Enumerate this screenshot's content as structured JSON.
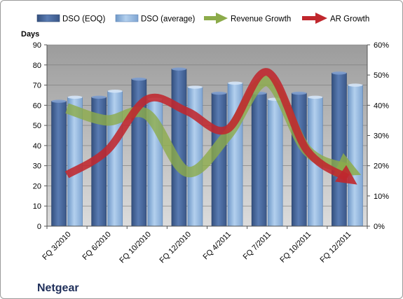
{
  "chart_data": {
    "type": "bar",
    "company": "Netgear",
    "ylabel_left": "Days",
    "ylim_left": [
      0,
      90
    ],
    "yticks_left": [
      "0",
      "10",
      "20",
      "30",
      "40",
      "50",
      "60",
      "70",
      "80",
      "90"
    ],
    "ylim_right": [
      0,
      60
    ],
    "yticks_right": [
      "0%",
      "10%",
      "20%",
      "30%",
      "40%",
      "50%",
      "60%"
    ],
    "categories": [
      "FQ 3/2010",
      "FQ 6/2010",
      "FQ 10/2010",
      "FQ 12/2010",
      "FQ 4/2011",
      "FQ 7/2011",
      "FQ 10/2011",
      "FQ 12/2011"
    ],
    "grid": true,
    "legend_position": "top",
    "series": [
      {
        "name": "DSO (EOQ)",
        "kind": "bar",
        "axis": "left",
        "color": "#4a6a9e",
        "values": [
          62,
          64,
          73,
          78,
          66,
          66,
          66,
          76
        ]
      },
      {
        "name": "DSO (average)",
        "kind": "bar",
        "axis": "left",
        "color": "#8fb4de",
        "values": [
          64,
          67,
          63,
          69,
          71,
          63,
          64,
          70
        ]
      },
      {
        "name": "Revenue Growth",
        "kind": "line",
        "axis": "right",
        "color": "#8cab4a",
        "values": [
          39,
          35,
          37,
          18,
          30,
          48,
          25,
          19
        ]
      },
      {
        "name": "AR Growth",
        "kind": "line",
        "axis": "right",
        "color": "#c0272d",
        "values": [
          17,
          25,
          42,
          38,
          32,
          51,
          25,
          16
        ]
      }
    ]
  }
}
